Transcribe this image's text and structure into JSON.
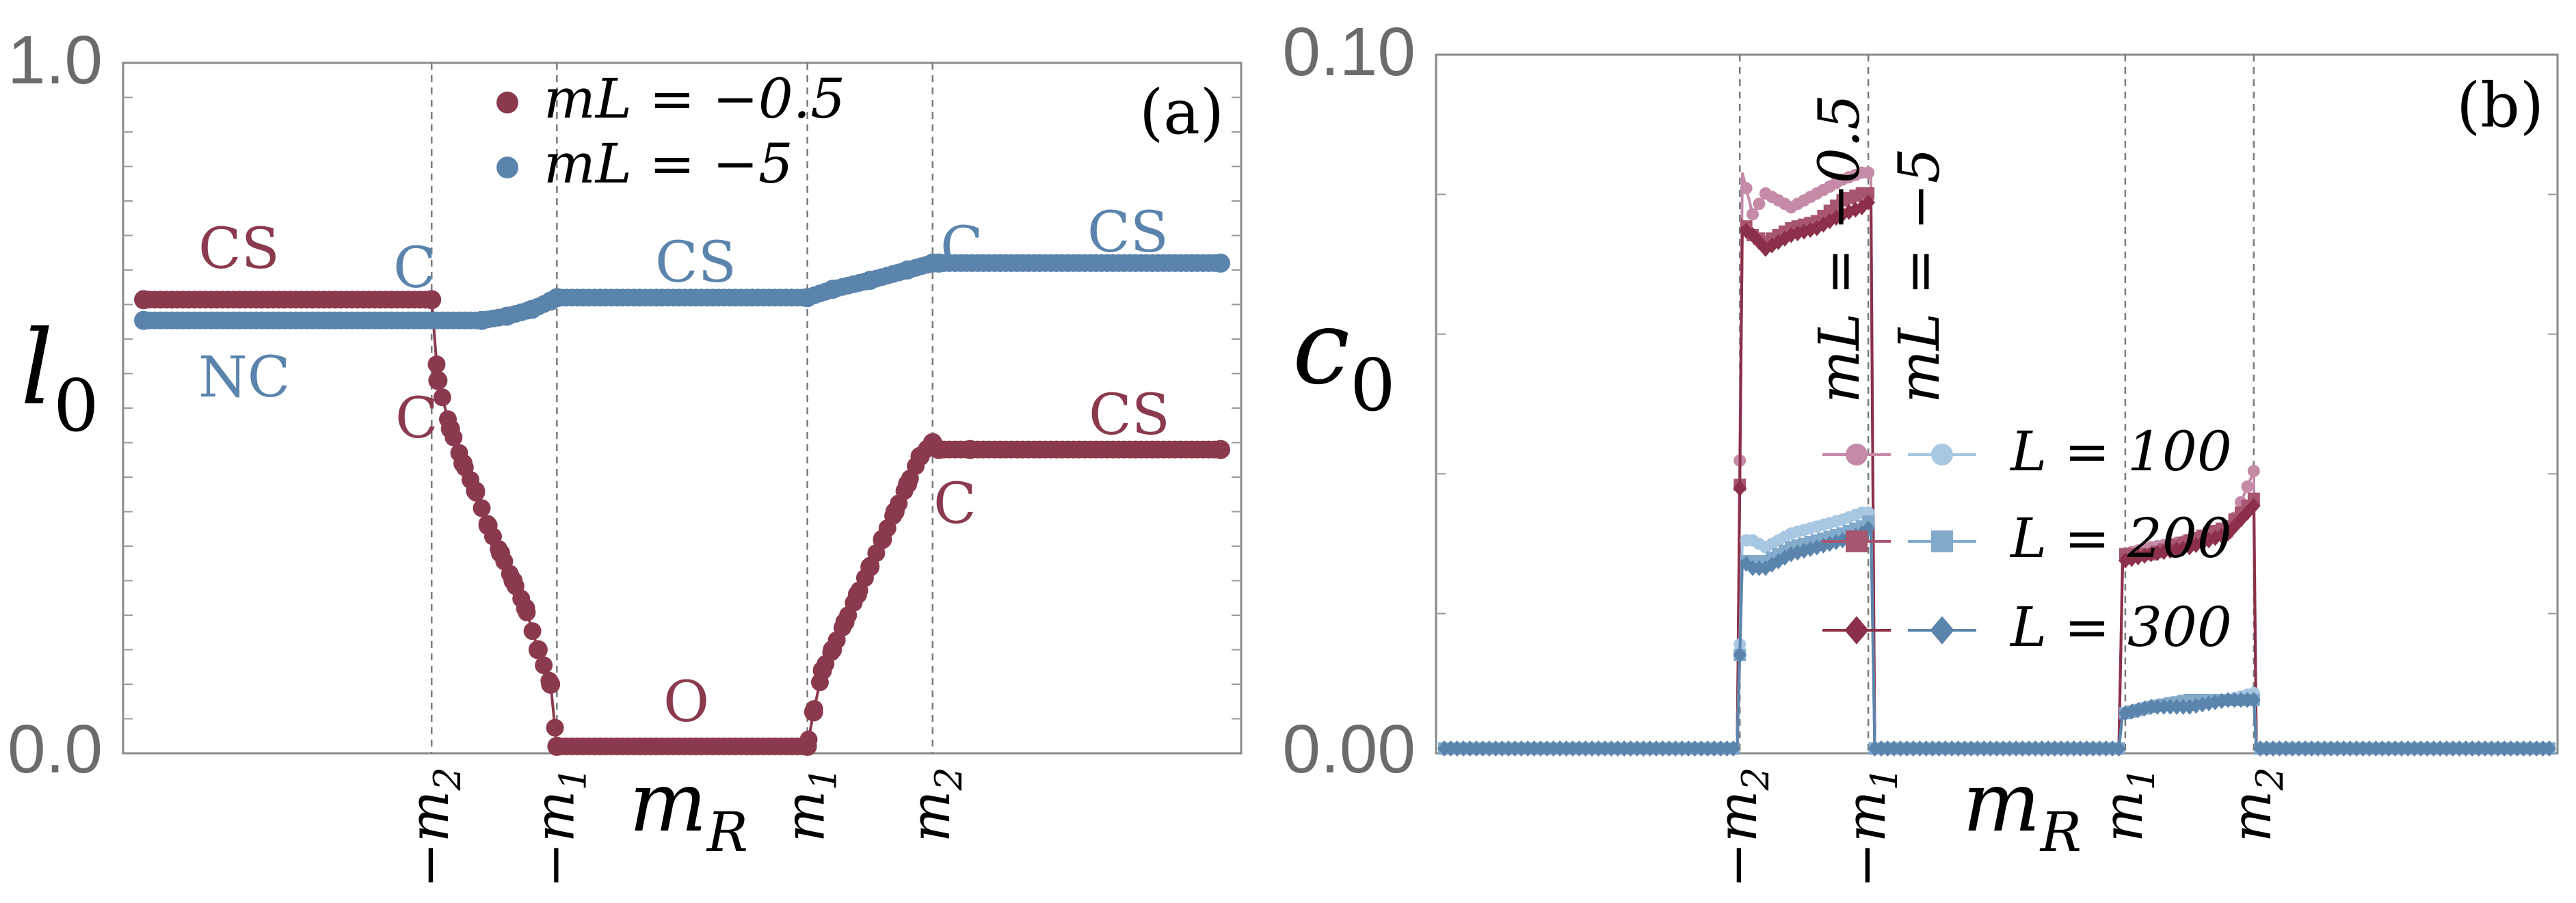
{
  "colors": {
    "red": "#8b3a4e",
    "blue": "#5b84ad",
    "red_100": "#c48aa6",
    "red_200": "#a85570",
    "red_300": "#8b3048",
    "blue_100": "#a7c7e2",
    "blue_200": "#82aacb",
    "blue_300": "#5b84ad",
    "tick_gray": "#6b6b6b"
  },
  "chart_data": [
    {
      "type": "scatter",
      "panel": "(a)",
      "ylabel": "l",
      "ylabel_sub": "0",
      "xlabel": "m",
      "xlabel_sub": "R",
      "ylim": [
        0,
        1
      ],
      "yticks": [
        "1.0",
        "0.0"
      ],
      "xticks": [
        "−m2",
        "−m1",
        "m1",
        "m2"
      ],
      "xtick_values": [
        -2,
        -1,
        1,
        2
      ],
      "xlim": [
        -4.3,
        4.3
      ],
      "legend_position": "top-center",
      "legend": [
        {
          "label": "m_L = −0.5",
          "text": "mL = −0.5"
        },
        {
          "label": "m_L = −5",
          "text": "mL = −5"
        }
      ],
      "series": [
        {
          "name": "m_L = −0.5",
          "points": [
            [
              -4.3,
              0.657
            ],
            [
              -2.0,
              0.657
            ],
            [
              -1.95,
              0.54
            ],
            [
              -1.85,
              0.47
            ],
            [
              -1.75,
              0.42
            ],
            [
              -1.65,
              0.38
            ],
            [
              -1.55,
              0.33
            ],
            [
              -1.45,
              0.29
            ],
            [
              -1.35,
              0.25
            ],
            [
              -1.25,
              0.21
            ],
            [
              -1.15,
              0.15
            ],
            [
              -1.05,
              0.1
            ],
            [
              -1.0,
              0.01
            ],
            [
              1.0,
              0.01
            ],
            [
              1.05,
              0.06
            ],
            [
              1.12,
              0.12
            ],
            [
              1.2,
              0.15
            ],
            [
              1.3,
              0.19
            ],
            [
              1.4,
              0.23
            ],
            [
              1.5,
              0.27
            ],
            [
              1.6,
              0.31
            ],
            [
              1.7,
              0.35
            ],
            [
              1.8,
              0.39
            ],
            [
              1.9,
              0.43
            ],
            [
              2.0,
              0.45
            ],
            [
              2.05,
              0.44
            ],
            [
              2.3,
              0.44
            ],
            [
              4.3,
              0.44
            ]
          ]
        },
        {
          "name": "m_L = −5",
          "points": [
            [
              -4.3,
              0.627
            ],
            [
              -1.6,
              0.627
            ],
            [
              -1.4,
              0.633
            ],
            [
              -1.2,
              0.643
            ],
            [
              -1.05,
              0.655
            ],
            [
              -1.0,
              0.66
            ],
            [
              1.0,
              0.66
            ],
            [
              1.2,
              0.672
            ],
            [
              1.5,
              0.685
            ],
            [
              1.8,
              0.7
            ],
            [
              2.0,
              0.71
            ],
            [
              2.05,
              0.71
            ],
            [
              4.3,
              0.71
            ]
          ]
        }
      ],
      "annotations": [
        {
          "text": "CS",
          "series": "red"
        },
        {
          "text": "NC",
          "series": "blue"
        },
        {
          "text": "C",
          "series": "blue"
        },
        {
          "text": "C",
          "series": "red"
        },
        {
          "text": "CS",
          "series": "blue"
        },
        {
          "text": "O",
          "series": "red"
        },
        {
          "text": "C",
          "series": "blue"
        },
        {
          "text": "CS",
          "series": "blue"
        },
        {
          "text": "C",
          "series": "red"
        },
        {
          "text": "CS",
          "series": "red"
        }
      ]
    },
    {
      "type": "line",
      "panel": "(b)",
      "ylabel": "c",
      "ylabel_sub": "0",
      "xlabel": "m",
      "xlabel_sub": "R",
      "ylim": [
        0,
        0.1
      ],
      "yticks": [
        "0.10",
        "0.00"
      ],
      "xticks": [
        "−m2",
        "−m1",
        "m1",
        "m2"
      ],
      "xtick_values": [
        -2,
        -1,
        1,
        2
      ],
      "xlim": [
        -4.3,
        4.3
      ],
      "legend_position": "center",
      "legend_headers": [
        "mL = −0.5",
        "mL = −5"
      ],
      "legend": [
        {
          "label": "L = 100",
          "text": "L = 100",
          "marker": "circle"
        },
        {
          "label": "L = 200",
          "text": "L = 200",
          "marker": "square"
        },
        {
          "label": "L = 300",
          "text": "L = 300",
          "marker": "diamond"
        }
      ],
      "series": [
        {
          "name": "m_L = −0.5, L = 100",
          "points": [
            [
              -4.3,
              0
            ],
            [
              -2.02,
              0
            ],
            [
              -1.98,
              0.083
            ],
            [
              -1.9,
              0.077
            ],
            [
              -1.8,
              0.08
            ],
            [
              -1.6,
              0.078
            ],
            [
              -1.4,
              0.08
            ],
            [
              -1.2,
              0.082
            ],
            [
              -1.05,
              0.083
            ],
            [
              -0.98,
              0.083
            ],
            [
              -0.95,
              0
            ],
            [
              0.95,
              0
            ],
            [
              0.98,
              0.028
            ],
            [
              1.2,
              0.029
            ],
            [
              1.5,
              0.03
            ],
            [
              1.8,
              0.031
            ],
            [
              2.0,
              0.04
            ],
            [
              2.02,
              0
            ],
            [
              4.3,
              0
            ]
          ]
        },
        {
          "name": "m_L = −0.5, L = 200",
          "points": [
            [
              -4.3,
              0
            ],
            [
              -2.02,
              0
            ],
            [
              -1.98,
              0.076
            ],
            [
              -1.9,
              0.074
            ],
            [
              -1.8,
              0.073
            ],
            [
              -1.6,
              0.075
            ],
            [
              -1.4,
              0.076
            ],
            [
              -1.2,
              0.079
            ],
            [
              -1.05,
              0.08
            ],
            [
              -0.98,
              0.08
            ],
            [
              -0.95,
              0
            ],
            [
              0.95,
              0
            ],
            [
              0.98,
              0.028
            ],
            [
              1.2,
              0.028
            ],
            [
              1.5,
              0.03
            ],
            [
              1.8,
              0.032
            ],
            [
              2.0,
              0.036
            ],
            [
              2.02,
              0
            ],
            [
              4.3,
              0
            ]
          ]
        },
        {
          "name": "m_L = −0.5, L = 300",
          "points": [
            [
              -4.3,
              0
            ],
            [
              -2.02,
              0
            ],
            [
              -1.98,
              0.075
            ],
            [
              -1.9,
              0.074
            ],
            [
              -1.8,
              0.072
            ],
            [
              -1.6,
              0.074
            ],
            [
              -1.4,
              0.075
            ],
            [
              -1.2,
              0.077
            ],
            [
              -1.05,
              0.078
            ],
            [
              -0.98,
              0.079
            ],
            [
              -0.95,
              0
            ],
            [
              0.95,
              0
            ],
            [
              0.98,
              0.027
            ],
            [
              1.2,
              0.028
            ],
            [
              1.5,
              0.029
            ],
            [
              1.8,
              0.031
            ],
            [
              2.0,
              0.035
            ],
            [
              2.02,
              0
            ],
            [
              4.3,
              0
            ]
          ]
        },
        {
          "name": "m_L = −5, L = 100",
          "points": [
            [
              -4.3,
              0
            ],
            [
              -2.02,
              0
            ],
            [
              -1.98,
              0.03
            ],
            [
              -1.9,
              0.03
            ],
            [
              -1.8,
              0.029
            ],
            [
              -1.6,
              0.031
            ],
            [
              -1.4,
              0.032
            ],
            [
              -1.2,
              0.033
            ],
            [
              -1.05,
              0.034
            ],
            [
              -0.98,
              0.034
            ],
            [
              -0.95,
              0
            ],
            [
              0.95,
              0
            ],
            [
              0.98,
              0.005
            ],
            [
              1.2,
              0.006
            ],
            [
              1.5,
              0.007
            ],
            [
              1.8,
              0.007
            ],
            [
              2.0,
              0.008
            ],
            [
              2.02,
              0
            ],
            [
              4.3,
              0
            ]
          ]
        },
        {
          "name": "m_L = −5, L = 200",
          "points": [
            [
              -4.3,
              0
            ],
            [
              -2.02,
              0
            ],
            [
              -1.98,
              0.027
            ],
            [
              -1.9,
              0.027
            ],
            [
              -1.8,
              0.027
            ],
            [
              -1.6,
              0.029
            ],
            [
              -1.4,
              0.03
            ],
            [
              -1.2,
              0.031
            ],
            [
              -1.05,
              0.032
            ],
            [
              -0.98,
              0.033
            ],
            [
              -0.95,
              0
            ],
            [
              0.95,
              0
            ],
            [
              0.98,
              0.005
            ],
            [
              1.2,
              0.006
            ],
            [
              1.5,
              0.007
            ],
            [
              1.8,
              0.007
            ],
            [
              2.0,
              0.007
            ],
            [
              2.02,
              0
            ],
            [
              4.3,
              0
            ]
          ]
        },
        {
          "name": "m_L = −5, L = 300",
          "points": [
            [
              -4.3,
              0
            ],
            [
              -2.02,
              0
            ],
            [
              -1.98,
              0.027
            ],
            [
              -1.9,
              0.026
            ],
            [
              -1.8,
              0.026
            ],
            [
              -1.6,
              0.028
            ],
            [
              -1.4,
              0.029
            ],
            [
              -1.2,
              0.03
            ],
            [
              -1.05,
              0.031
            ],
            [
              -0.98,
              0.032
            ],
            [
              -0.95,
              0
            ],
            [
              0.95,
              0
            ],
            [
              0.98,
              0.005
            ],
            [
              1.2,
              0.006
            ],
            [
              1.5,
              0.006
            ],
            [
              1.8,
              0.007
            ],
            [
              2.0,
              0.007
            ],
            [
              2.02,
              0
            ],
            [
              4.3,
              0
            ]
          ]
        }
      ]
    }
  ]
}
